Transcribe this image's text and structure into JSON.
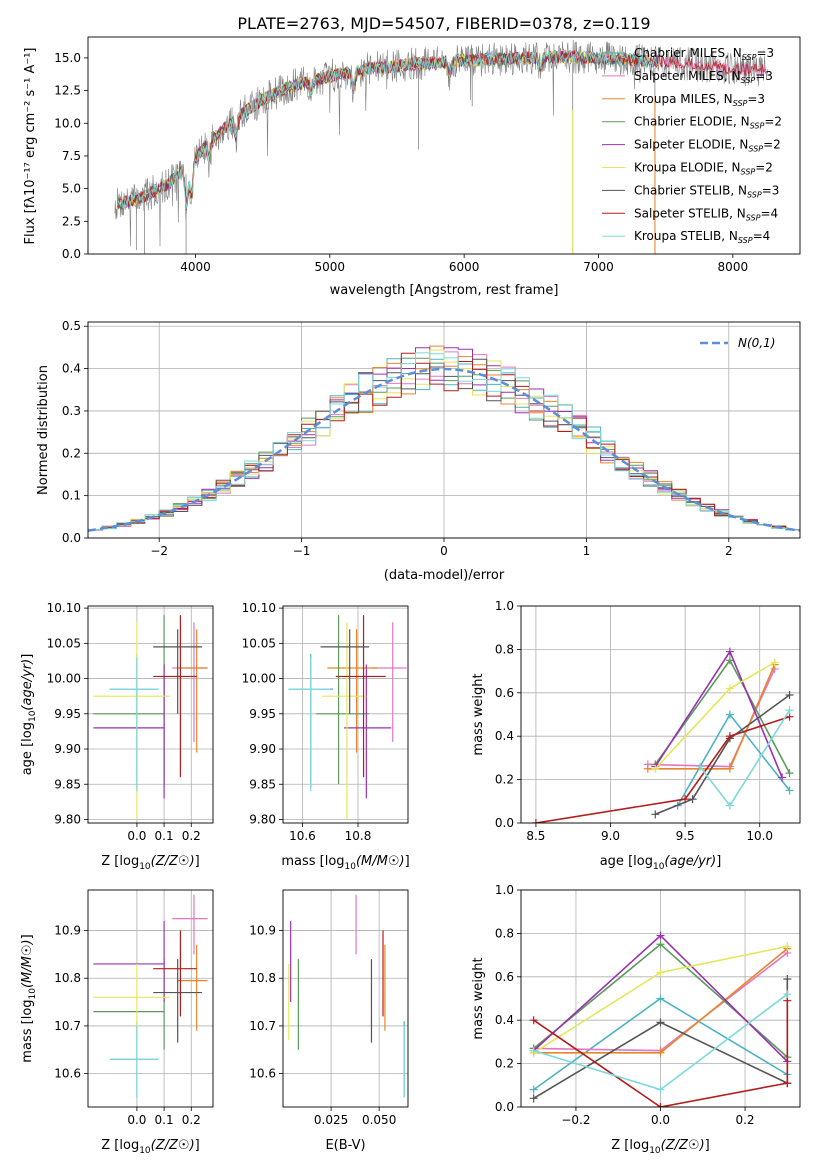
{
  "figure_title": "PLATE=2763, MJD=54507, FIBERID=0378, z=0.119",
  "colors": {
    "Chabrier MILES": "#4ab3c4",
    "Salpeter MILES": "#e377c2",
    "Kroupa MILES": "#e8862a",
    "Chabrier ELODIE": "#5a9a5a",
    "Salpeter ELODIE": "#9b30b0",
    "Kroupa ELODIE": "#e6e65a",
    "Chabrier STELIB": "#555555",
    "Salpeter STELIB": "#b51c1c",
    "Kroupa STELIB": "#7dd8dc",
    "data": "#808080",
    "normal_curve": "#5b8fd9"
  },
  "chart_data": [
    {
      "id": "spectrum",
      "type": "line",
      "xlabel": "wavelength [Angstrom, rest frame]",
      "ylabel": "Flux [fλ10⁻¹⁷ erg cm⁻² s⁻¹ A⁻¹]",
      "xlim": [
        3200,
        8500
      ],
      "ylim": [
        0,
        16.6
      ],
      "xticks": [
        4000,
        5000,
        6000,
        7000,
        8000
      ],
      "yticks": [
        0.0,
        2.5,
        5.0,
        7.5,
        10.0,
        12.5,
        15.0
      ],
      "legend_position": "upper-right",
      "legend": [
        {
          "label": "Chabrier MILES, N",
          "sub": "SSP",
          "n": "=3",
          "model": "Chabrier MILES"
        },
        {
          "label": "Salpeter MILES, N",
          "sub": "SSP",
          "n": "=3",
          "model": "Salpeter MILES"
        },
        {
          "label": "Kroupa MILES, N",
          "sub": "SSP",
          "n": "=3",
          "model": "Kroupa MILES"
        },
        {
          "label": "Chabrier ELODIE, N",
          "sub": "SSP",
          "n": "=2",
          "model": "Chabrier ELODIE"
        },
        {
          "label": "Salpeter ELODIE, N",
          "sub": "SSP",
          "n": "=2",
          "model": "Salpeter ELODIE"
        },
        {
          "label": "Kroupa ELODIE, N",
          "sub": "SSP",
          "n": "=2",
          "model": "Kroupa ELODIE"
        },
        {
          "label": "Chabrier STELIB, N",
          "sub": "SSP",
          "n": "=3",
          "model": "Chabrier STELIB"
        },
        {
          "label": "Salpeter STELIB, N",
          "sub": "SSP",
          "n": "=4",
          "model": "Salpeter STELIB"
        },
        {
          "label": "Kroupa STELIB, N",
          "sub": "SSP",
          "n": "=4",
          "model": "Kroupa STELIB"
        }
      ],
      "continuum": {
        "x": [
          3400,
          3600,
          3800,
          3950,
          4100,
          4300,
          4500,
          4700,
          5000,
          5300,
          5600,
          6000,
          6400,
          6800,
          7200,
          7600,
          8000,
          8250
        ],
        "y": [
          3.8,
          4.3,
          5.4,
          6.8,
          8.5,
          10.4,
          11.8,
          12.8,
          13.6,
          14.2,
          14.5,
          14.8,
          15.0,
          15.1,
          14.9,
          14.6,
          14.2,
          14.0
        ]
      }
    },
    {
      "id": "residuals",
      "type": "histogram",
      "xlabel": "(data-model)/error",
      "ylabel": "Normed distribution",
      "xlim": [
        -2.5,
        2.5
      ],
      "ylim": [
        0,
        0.51
      ],
      "xticks": [
        -2,
        -1,
        0,
        1,
        2
      ],
      "yticks": [
        0.0,
        0.1,
        0.2,
        0.3,
        0.4,
        0.5
      ],
      "bins": [
        -2.5,
        2.5,
        50
      ],
      "normal_curve_label": "N(0,1)",
      "legend_position": "upper-right"
    },
    {
      "id": "age-vs-Z",
      "type": "scatter",
      "xlabel": "Z [log10(Z/Z☉)]",
      "ylabel": "age  [log10(age/yr)]",
      "xlim": [
        -0.18,
        0.28
      ],
      "ylim": [
        9.795,
        10.103
      ],
      "xticks": [
        0.0,
        0.1,
        0.2
      ],
      "yticks": [
        9.8,
        9.85,
        9.9,
        9.95,
        10.0,
        10.05,
        10.1
      ]
    },
    {
      "id": "age-vs-mass",
      "type": "scatter",
      "xlabel": "mass [log10(M/M☉)]",
      "ylabel": "",
      "xlim": [
        10.53,
        10.98
      ],
      "ylim": [
        9.795,
        10.103
      ],
      "xticks": [
        10.6,
        10.8
      ],
      "yticks": [
        9.8,
        9.85,
        9.9,
        9.95,
        10.0,
        10.05,
        10.1
      ]
    },
    {
      "id": "weight-vs-age",
      "type": "line",
      "xlabel": "age  [log10(age/yr)]",
      "ylabel": "mass weight",
      "xlim": [
        8.4,
        10.27
      ],
      "ylim": [
        0,
        1.0
      ],
      "xticks": [
        8.5,
        9.0,
        9.5,
        10.0
      ],
      "yticks": [
        0.0,
        0.2,
        0.4,
        0.6,
        0.8,
        1.0
      ]
    },
    {
      "id": "mass-vs-Z",
      "type": "scatter",
      "xlabel": "Z [log10(Z/Z☉)]",
      "ylabel": "mass [log10(M/M☉)]",
      "xlim": [
        -0.18,
        0.28
      ],
      "ylim": [
        10.53,
        10.985
      ],
      "xticks": [
        0.0,
        0.1,
        0.2
      ],
      "yticks": [
        10.6,
        10.7,
        10.8,
        10.9
      ]
    },
    {
      "id": "mass-vs-ebv",
      "type": "scatter",
      "xlabel": "E(B-V)",
      "ylabel": "",
      "xlim": [
        0.0,
        0.065
      ],
      "ylim": [
        10.53,
        10.985
      ],
      "xticks": [
        0.025,
        0.05
      ],
      "yticks": [
        10.6,
        10.7,
        10.8,
        10.9
      ]
    },
    {
      "id": "weight-vs-Z",
      "type": "line",
      "xlabel": "Z [log10(Z/Z☉)]",
      "ylabel": "mass weight",
      "xlim": [
        -0.33,
        0.33
      ],
      "ylim": [
        0,
        1.0
      ],
      "xticks": [
        -0.2,
        0.0,
        0.2
      ],
      "yticks": [
        0.0,
        0.2,
        0.4,
        0.6,
        0.8,
        1.0
      ]
    }
  ],
  "fits": [
    {
      "model": "Chabrier MILES",
      "age": 9.985,
      "age_lo": 9.845,
      "age_hi": 10.035,
      "Z": 0.0,
      "Z_lo": -0.1,
      "Z_hi": 0.08,
      "mass": 10.63,
      "mass_lo": 10.55,
      "mass_hi": 10.71,
      "ebv": 0.063,
      "ssp_age": [
        9.45,
        9.8,
        10.2
      ],
      "ssp_Z": [
        -0.3,
        0.0,
        0.3
      ],
      "ssp_w": [
        0.08,
        0.5,
        0.15
      ]
    },
    {
      "model": "Salpeter MILES",
      "age": 10.015,
      "age_lo": 9.91,
      "age_hi": 10.08,
      "Z": 0.21,
      "Z_lo": 0.13,
      "Z_hi": 0.26,
      "mass": 10.925,
      "mass_lo": 10.85,
      "mass_hi": 10.975,
      "ebv": 0.038,
      "ssp_age": [
        9.25,
        9.8,
        10.1
      ],
      "ssp_Z": [
        -0.3,
        0.0,
        0.3
      ],
      "ssp_w": [
        0.27,
        0.26,
        0.71
      ]
    },
    {
      "model": "Kroupa MILES",
      "age": 10.015,
      "age_lo": 9.895,
      "age_hi": 10.07,
      "Z": 0.22,
      "Z_lo": 0.15,
      "Z_hi": 0.26,
      "mass": 10.795,
      "mass_lo": 10.69,
      "mass_hi": 10.87,
      "ebv": 0.053,
      "ssp_age": [
        9.25,
        9.8,
        10.1
      ],
      "ssp_Z": [
        -0.3,
        0.0,
        0.3
      ],
      "ssp_w": [
        0.25,
        0.25,
        0.73
      ]
    },
    {
      "model": "Chabrier ELODIE",
      "age": 9.95,
      "age_lo": 9.85,
      "age_hi": 10.09,
      "Z": 0.1,
      "Z_lo": -0.16,
      "Z_hi": 0.1,
      "mass": 10.73,
      "mass_lo": 10.65,
      "mass_hi": 10.84,
      "ebv": 0.008,
      "ssp_age": [
        9.3,
        9.8,
        10.2
      ],
      "ssp_Z": [
        -0.3,
        0.0,
        0.3
      ],
      "ssp_w": [
        0.27,
        0.75,
        0.23
      ]
    },
    {
      "model": "Salpeter ELODIE",
      "age": 9.93,
      "age_lo": 9.83,
      "age_hi": 10.02,
      "Z": 0.1,
      "Z_lo": -0.16,
      "Z_hi": 0.1,
      "mass": 10.83,
      "mass_lo": 10.75,
      "mass_hi": 10.92,
      "ebv": 0.004,
      "ssp_age": [
        9.3,
        9.8,
        10.15
      ],
      "ssp_Z": [
        -0.3,
        0.0,
        0.3
      ],
      "ssp_w": [
        0.26,
        0.79,
        0.21
      ]
    },
    {
      "model": "Kroupa ELODIE",
      "age": 9.975,
      "age_lo": 9.8,
      "age_hi": 10.08,
      "Z": 0.0,
      "Z_lo": -0.16,
      "Z_hi": 0.12,
      "mass": 10.76,
      "mass_lo": 10.67,
      "mass_hi": 10.83,
      "ebv": 0.003,
      "ssp_age": [
        9.3,
        9.8,
        10.1
      ],
      "ssp_Z": [
        -0.3,
        0.0,
        0.3
      ],
      "ssp_w": [
        0.25,
        0.62,
        0.74
      ]
    },
    {
      "model": "Chabrier STELIB",
      "age": 10.045,
      "age_lo": 9.95,
      "age_hi": 10.07,
      "Z": 0.15,
      "Z_lo": 0.06,
      "Z_hi": 0.24,
      "mass": 10.77,
      "mass_lo": 10.665,
      "mass_hi": 10.84,
      "ebv": 0.046,
      "ssp_age": [
        9.3,
        9.55,
        9.8,
        10.2
      ],
      "ssp_Z": [
        -0.3,
        0.3,
        0.0,
        0.3
      ],
      "ssp_w": [
        0.04,
        0.11,
        0.39,
        0.59
      ]
    },
    {
      "model": "Salpeter STELIB",
      "age": 10.003,
      "age_lo": 9.86,
      "age_hi": 10.09,
      "Z": 0.16,
      "Z_lo": 0.06,
      "Z_hi": 0.22,
      "mass": 10.82,
      "mass_lo": 10.72,
      "mass_hi": 10.9,
      "ebv": 0.052,
      "ssp_age": [
        8.5,
        9.5,
        9.8,
        10.2
      ],
      "ssp_Z": [
        0.0,
        0.3,
        -0.3,
        0.3
      ],
      "ssp_w": [
        0.0,
        0.11,
        0.4,
        0.49
      ]
    },
    {
      "model": "Kroupa STELIB",
      "age": 9.985,
      "age_lo": 9.84,
      "age_hi": 10.03,
      "Z": 0.0,
      "Z_lo": -0.1,
      "Z_hi": 0.08,
      "mass": 10.63,
      "mass_lo": 10.55,
      "mass_hi": 10.7,
      "ebv": 0.063,
      "ssp_age": [
        9.6,
        9.8,
        10.2
      ],
      "ssp_Z": [
        -0.3,
        0.0,
        0.3
      ],
      "ssp_w": [
        0.26,
        0.08,
        0.52
      ]
    }
  ]
}
